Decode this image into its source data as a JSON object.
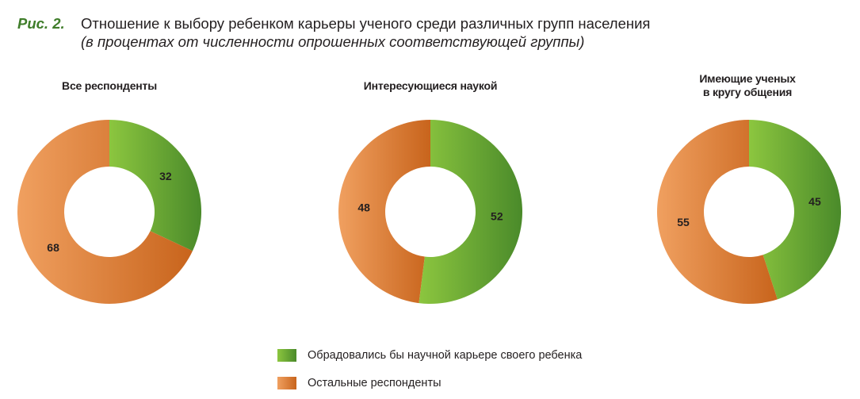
{
  "figure": {
    "number": "Рис. 2.",
    "title": "Отношение к выбору ребенком карьеры ученого среди различных групп населения",
    "subtitle": "в процентах от численности опрошенных соответствующей группы"
  },
  "colors": {
    "green_light": "#8cc63f",
    "green_dark": "#4a8a2a",
    "orange_light": "#f0a060",
    "orange_dark": "#c8641c"
  },
  "chart_data": [
    {
      "type": "pie",
      "style": "donut",
      "title_lines": [
        "Все респонденты"
      ],
      "categories": [
        "Обрадовались бы научной карьере своего ребенка",
        "Остальные респонденты"
      ],
      "values": [
        32,
        68
      ]
    },
    {
      "type": "pie",
      "style": "donut",
      "title_lines": [
        "Интересующиеся наукой"
      ],
      "categories": [
        "Обрадовались бы научной карьере своего ребенка",
        "Остальные респонденты"
      ],
      "values": [
        52,
        48
      ]
    },
    {
      "type": "pie",
      "style": "donut",
      "title_lines": [
        "Имеющие ученых",
        "в кругу общения"
      ],
      "categories": [
        "Обрадовались бы научной карьере своего ребенка",
        "Остальные респонденты"
      ],
      "values": [
        45,
        55
      ]
    }
  ],
  "legend": [
    {
      "label": "Обрадовались бы научной карьере своего ребенка",
      "color": "green"
    },
    {
      "label": "Остальные респонденты",
      "color": "orange"
    }
  ]
}
